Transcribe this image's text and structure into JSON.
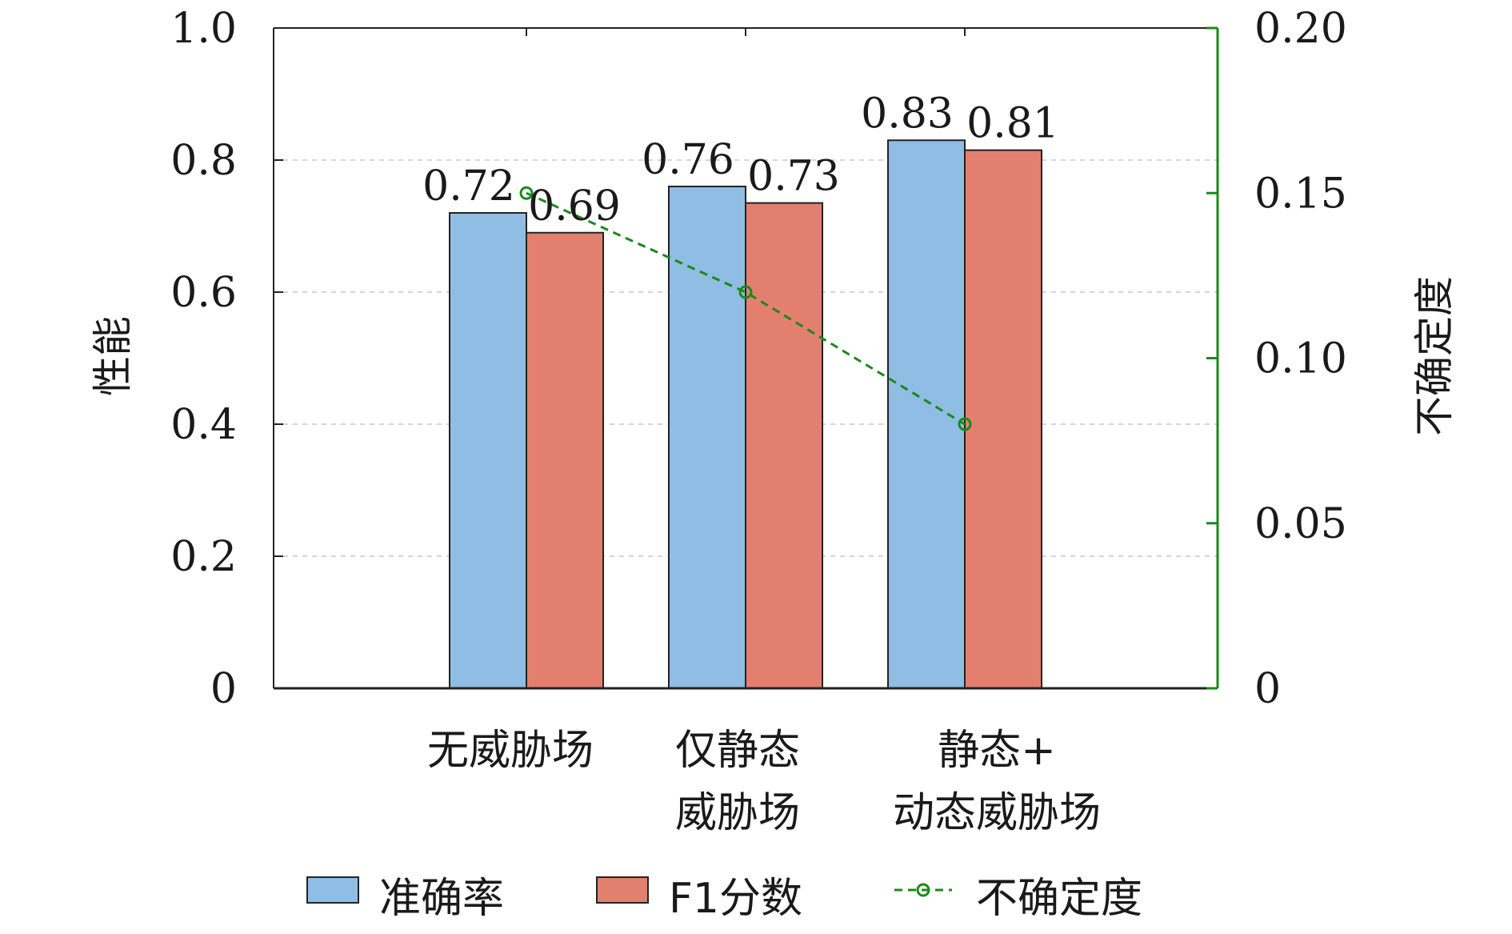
{
  "chart_data": {
    "type": "bar",
    "categories": [
      [
        "无威胁场"
      ],
      [
        "仅静态",
        "威胁场"
      ],
      [
        "静态+",
        "动态威胁场"
      ]
    ],
    "series": [
      {
        "name": "准确率",
        "values": [
          0.72,
          0.76,
          0.83
        ],
        "labels": [
          "0.72",
          "0.76",
          "0.83"
        ],
        "color": "#8fbde3"
      },
      {
        "name": "F1分数",
        "values": [
          0.69,
          0.735,
          0.815
        ],
        "labels": [
          "0.69",
          "0.73",
          "0.81"
        ],
        "color": "#e37f6e"
      }
    ],
    "line_series": {
      "name": "不确定度",
      "values": [
        0.15,
        0.12,
        0.08
      ],
      "color": "#1a8a1a",
      "axis": "right"
    },
    "ylabel": "性能",
    "ylabel_right": "不确定度",
    "ylim": [
      0,
      1.0
    ],
    "ylim_right": [
      0,
      0.2
    ],
    "yticks": [
      "0",
      "0.2",
      "0.4",
      "0.6",
      "0.8",
      "1.0"
    ],
    "yticks_values": [
      0,
      0.2,
      0.4,
      0.6,
      0.8,
      1.0
    ],
    "yticks_right": [
      "0",
      "0.05",
      "0.10",
      "0.15",
      "0.20"
    ],
    "yticks_right_values": [
      0,
      0.05,
      0.1,
      0.15,
      0.2
    ],
    "grid": "horizontal-dashed",
    "legend_position": "bottom"
  }
}
